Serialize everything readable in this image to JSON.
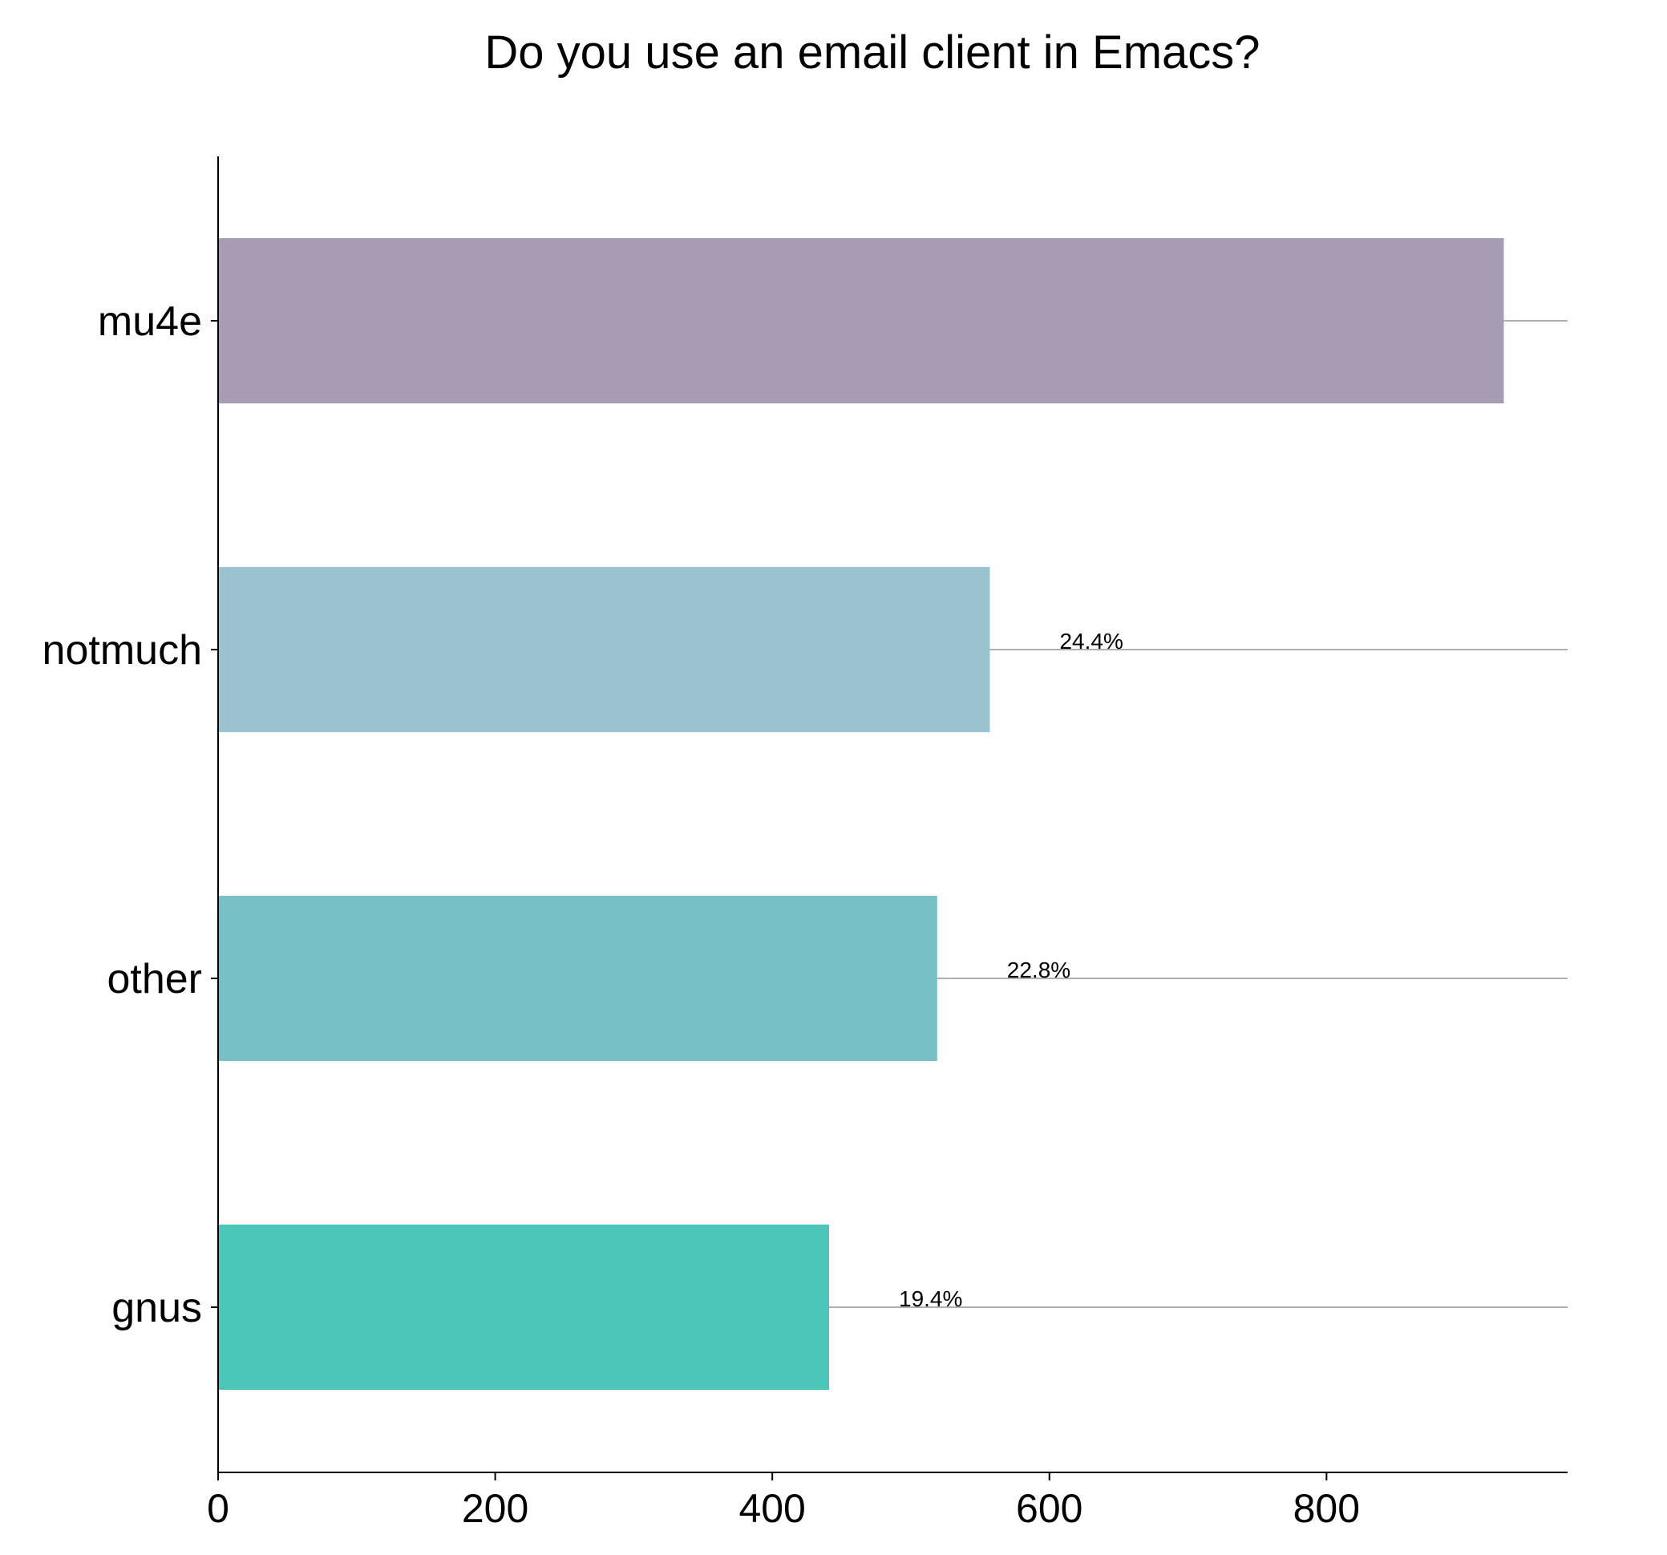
{
  "chart_data": {
    "type": "bar",
    "orientation": "horizontal",
    "title": "Do you use an email client in Emacs?",
    "xlabel": "",
    "ylabel": "",
    "categories": [
      "mu4e",
      "notmuch",
      "other",
      "gnus"
    ],
    "values": [
      928,
      557,
      519,
      441
    ],
    "data_labels": [
      "",
      "24.4%",
      "22.8%",
      "19.4%"
    ],
    "colors": [
      "#a89bb4",
      "#9bc3cf",
      "#77c0c5",
      "#4cc6b8"
    ],
    "xlim": [
      0,
      974
    ],
    "xticks": [
      0,
      200,
      400,
      600,
      800
    ],
    "grid": "horizontal-lines-at-categories",
    "legend": "none"
  }
}
